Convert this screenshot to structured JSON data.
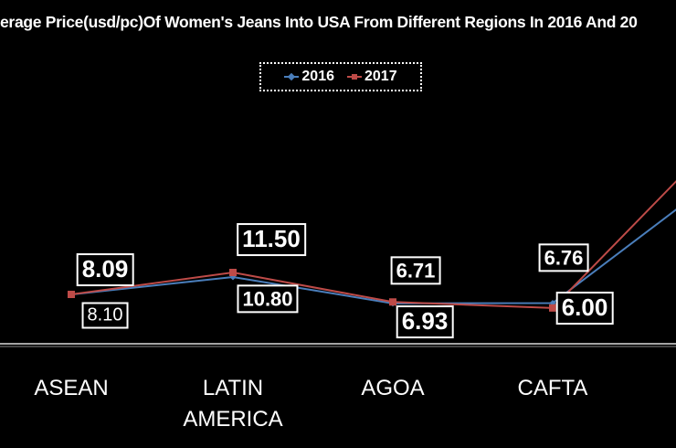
{
  "chart_data": {
    "type": "line",
    "title": "erage Price(usd/pc)Of Women's Jeans Into USA From Different Regions In 2016 And 20",
    "categories": [
      "ASEAN",
      "LATIN\nAMERICA",
      "AGOA",
      "CAFTA",
      ""
    ],
    "series": [
      {
        "name": "2016",
        "color": "#4a7ebb",
        "values": [
          8.09,
          10.8,
          6.71,
          6.76,
          25.5
        ],
        "labels": [
          "8.09",
          "10.80",
          "6.71",
          "6.76",
          ""
        ]
      },
      {
        "name": "2017",
        "color": "#be4b48",
        "values": [
          8.1,
          11.5,
          6.93,
          6.0,
          31.4
        ],
        "labels": [
          "8.10",
          "11.50",
          "6.93",
          "6.00",
          ""
        ]
      }
    ],
    "legend": {
      "placement": "top-center",
      "items": [
        "2016",
        "2017"
      ]
    },
    "xlabel": "",
    "ylabel": "",
    "grid": false
  }
}
